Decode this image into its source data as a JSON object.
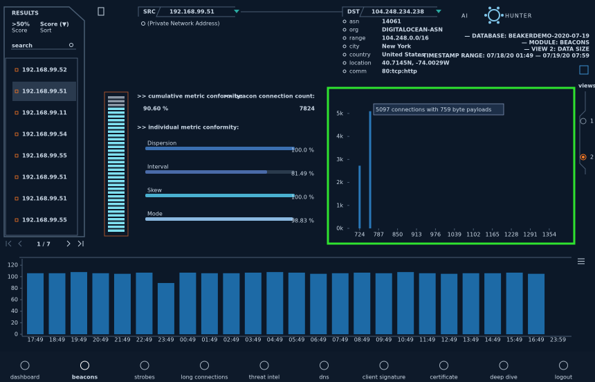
{
  "results": {
    "title": "RESULTS",
    "filters": [
      {
        "value": ">50%",
        "caption": "Score"
      },
      {
        "value": "Score (▼)",
        "caption": "Sort"
      }
    ],
    "search": "search",
    "items": [
      "192.168.99.52",
      "192.168.99.51",
      "192.168.99.11",
      "192.168.99.54",
      "192.168.99.55",
      "192.168.99.51",
      "192.168.99.51",
      "192.168.99.55"
    ],
    "selected": 1,
    "page": "1 / 7"
  },
  "src": {
    "label": "SRC",
    "ip": "192.168.99.51",
    "note": "(Private Network Address)"
  },
  "dst": {
    "label": "DST",
    "ip": "104.248.234.238",
    "details": [
      [
        "asn",
        "14061"
      ],
      [
        "org",
        "DIGITALOCEAN-ASN"
      ],
      [
        "range",
        "104.248.0.0/16"
      ],
      [
        "city",
        "New York"
      ],
      [
        "country",
        "United States"
      ],
      [
        "location",
        "40.7145N, -74.0029W"
      ],
      [
        "comm",
        "80:tcp:http"
      ]
    ]
  },
  "logo": [
    "AI",
    "HUNTER"
  ],
  "info": [
    "— DATABASE: BEAKERDEMO-2020-07-19",
    "— MODULE: BEACONS",
    "— VIEW 2: DATA SIZE",
    "—TIMESTAMP RANGE: 07/18/20 01:49 — 07/19/20 07:59"
  ],
  "metrics": {
    "cumulative": {
      "label": ">> cumulative metric conformity:",
      "value": 90.6,
      "value_label": "90.60 %"
    },
    "count": {
      "label": ">> beacon connection count:",
      "value": 7824
    },
    "individual_label": ">> individual metric conformity:",
    "items": [
      {
        "name": "Dispersion",
        "value": 100,
        "value_label": "100.0 %"
      },
      {
        "name": "Interval",
        "value": 81.49,
        "value_label": "81.49 %"
      },
      {
        "name": "Skew",
        "value": 100,
        "value_label": "100.0 %"
      },
      {
        "name": "Mode",
        "value": 98.83,
        "value_label": "98.83 %"
      }
    ]
  },
  "chart_data": [
    {
      "type": "bar",
      "x": [
        724,
        759
      ],
      "values": [
        2727,
        5097
      ],
      "color": "#2a78b8",
      "annotation": "5097 connections with 759 byte payloads",
      "xlim": [
        690,
        1391
      ],
      "xticks": [
        724,
        787,
        850,
        913,
        976,
        1039,
        1102,
        1165,
        1228,
        1291,
        1354
      ],
      "ylim": [
        0,
        5600
      ],
      "yticks": [
        {
          "value": 0,
          "label": "0k"
        },
        {
          "value": 1000,
          "label": "1k"
        },
        {
          "value": 2000,
          "label": "2k"
        },
        {
          "value": 3000,
          "label": "3k"
        },
        {
          "value": 4000,
          "label": "4k"
        },
        {
          "value": 5000,
          "label": "5k"
        }
      ]
    },
    {
      "type": "bar",
      "color": "#1d6aa6",
      "categories": [
        "17:49",
        "18:49",
        "19:49",
        "20:49",
        "21:49",
        "22:49",
        "23:49",
        "00:49",
        "01:49",
        "02:49",
        "03:49",
        "04:49",
        "05:49",
        "06:49",
        "07:49",
        "08:49",
        "09:49",
        "10:49",
        "11:49",
        "12:49",
        "13:49",
        "14:49",
        "15:49",
        "16:49",
        "23:59"
      ],
      "values": [
        106,
        106,
        108,
        106,
        105,
        107,
        89,
        107,
        106,
        106,
        107,
        108,
        107,
        105,
        106,
        107,
        106,
        108,
        106,
        105,
        106,
        106,
        107,
        105,
        null
      ],
      "ylim": [
        0,
        125
      ],
      "yticks": [
        0,
        20,
        40,
        60,
        80,
        100,
        120
      ]
    }
  ],
  "views": {
    "label": "views",
    "options": [
      "1",
      "2"
    ],
    "selected": 1
  },
  "nav": [
    "dashboard",
    "beacons",
    "strobes",
    "long connections",
    "threat intel",
    "dns",
    "client signature",
    "certificate",
    "deep dive",
    "logout"
  ],
  "nav_active": 1
}
